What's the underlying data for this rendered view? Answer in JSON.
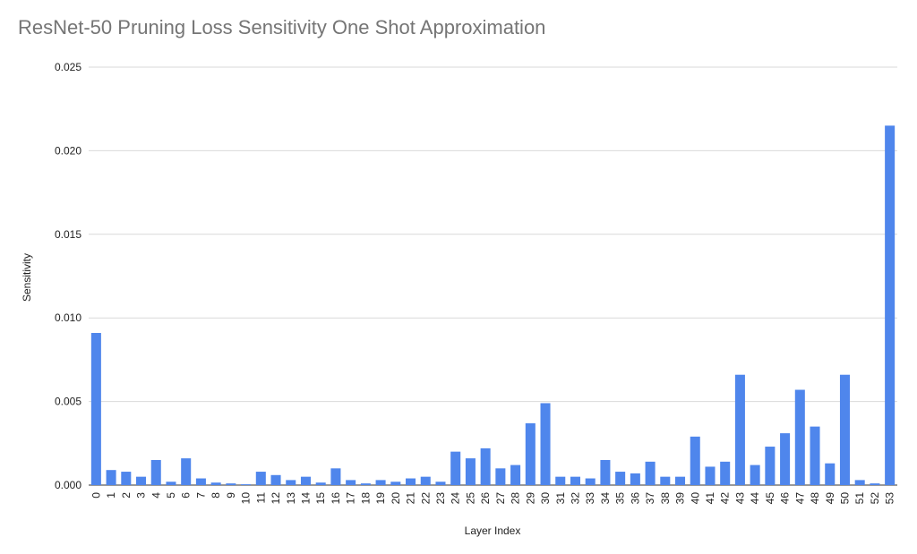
{
  "chart_data": {
    "type": "bar",
    "title": "ResNet-50 Pruning Loss Sensitivity One Shot Approximation",
    "xlabel": "Layer Index",
    "ylabel": "Sensitivity",
    "ylim": [
      0,
      0.025
    ],
    "yticks": [
      "0.000",
      "0.005",
      "0.010",
      "0.015",
      "0.020",
      "0.025"
    ],
    "ytick_values": [
      0,
      0.005,
      0.01,
      0.015,
      0.02,
      0.025
    ],
    "grid": true,
    "legend": "none",
    "bar_color": "#4f86ec",
    "categories": [
      "0",
      "1",
      "2",
      "3",
      "4",
      "5",
      "6",
      "7",
      "8",
      "9",
      "10",
      "11",
      "12",
      "13",
      "14",
      "15",
      "16",
      "17",
      "18",
      "19",
      "20",
      "21",
      "22",
      "23",
      "24",
      "25",
      "26",
      "27",
      "28",
      "29",
      "30",
      "31",
      "32",
      "33",
      "34",
      "35",
      "36",
      "37",
      "38",
      "39",
      "40",
      "41",
      "42",
      "43",
      "44",
      "45",
      "46",
      "47",
      "48",
      "49",
      "50",
      "51",
      "52",
      "53"
    ],
    "values": [
      0.0091,
      0.0009,
      0.0008,
      0.0005,
      0.0015,
      0.0002,
      0.0016,
      0.0004,
      0.00015,
      0.0001,
      5e-05,
      0.0008,
      0.0006,
      0.0003,
      0.0005,
      0.00015,
      0.001,
      0.0003,
      0.0001,
      0.0003,
      0.0002,
      0.0004,
      0.0005,
      0.0002,
      0.002,
      0.0016,
      0.0022,
      0.001,
      0.0012,
      0.0037,
      0.0049,
      0.0005,
      0.0005,
      0.0004,
      0.0015,
      0.0008,
      0.0007,
      0.0014,
      0.0005,
      0.0005,
      0.0029,
      0.0011,
      0.0014,
      0.0066,
      0.0012,
      0.0023,
      0.0031,
      0.0057,
      0.0035,
      0.0013,
      0.0066,
      0.0003,
      0.0001,
      0.0215
    ]
  }
}
